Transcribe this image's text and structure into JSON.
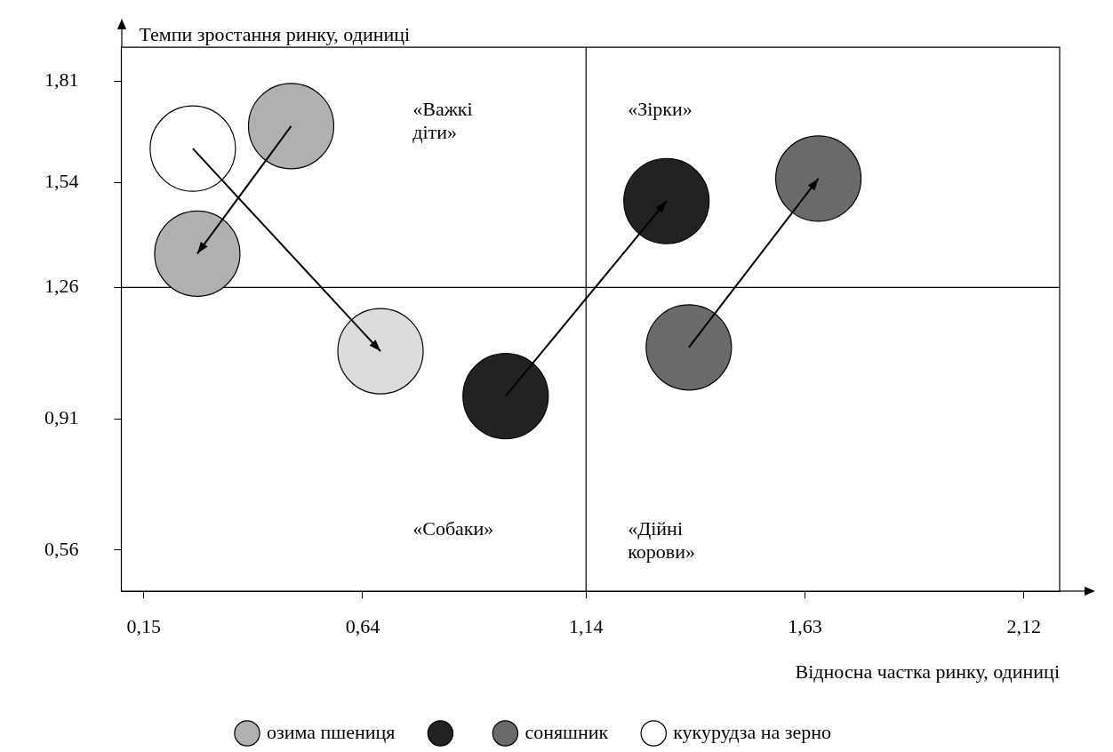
{
  "chart_data": {
    "type": "bubble",
    "xlabel": "Відносна частка ринку, одиниці",
    "ylabel": "Темпи зростання ринку, одиниці",
    "series": [
      {
        "name": "озима пшениця",
        "color": "#b0b0b0",
        "x": [
          0.48,
          0.27
        ],
        "values": [
          1.69,
          1.35
        ],
        "sizes": [
          1,
          1
        ]
      },
      {
        "color": "#222222",
        "x": [
          0.96,
          1.32
        ],
        "values": [
          0.97,
          1.49
        ],
        "sizes": [
          1,
          1
        ]
      },
      {
        "name": "соняшник",
        "color": "#6a6a6a",
        "x": [
          1.37,
          1.66
        ],
        "values": [
          1.1,
          1.55
        ],
        "sizes": [
          1,
          1
        ]
      },
      {
        "name": "кукурудза на зерно",
        "color": "#ffffff",
        "colors": [
          "#ffffff",
          "#dcdcdc"
        ],
        "x": [
          0.26,
          0.68
        ],
        "values": [
          1.63,
          1.09
        ],
        "sizes": [
          1,
          1
        ]
      }
    ],
    "xlim": [
      0.1,
      2.2
    ],
    "xticks": [
      {
        "value": 0.15,
        "label": "0,15"
      },
      {
        "value": 0.64,
        "label": "0,64"
      },
      {
        "value": 1.14,
        "label": "1,14"
      },
      {
        "value": 1.63,
        "label": "1,63"
      },
      {
        "value": 2.12,
        "label": "2,12"
      }
    ],
    "ylim": [
      0.45,
      1.9
    ],
    "yticks": [
      {
        "value": 0.56,
        "label": "0,56"
      },
      {
        "value": 0.91,
        "label": "0,91"
      },
      {
        "value": 1.26,
        "label": "1,26"
      },
      {
        "value": 1.54,
        "label": "1,54"
      },
      {
        "value": 1.81,
        "label": "1,81"
      }
    ],
    "ref_lines": [
      {
        "axis": "x",
        "value": 1.14,
        "color": "#000000"
      },
      {
        "axis": "y",
        "value": 1.26,
        "color": "#000000"
      }
    ],
    "annotations": [
      "«Важкі\nдіти»",
      "«Зірки»",
      "«Собаки»",
      "«Дійні\nкорови»"
    ],
    "grid": false,
    "legend": "bottom"
  }
}
